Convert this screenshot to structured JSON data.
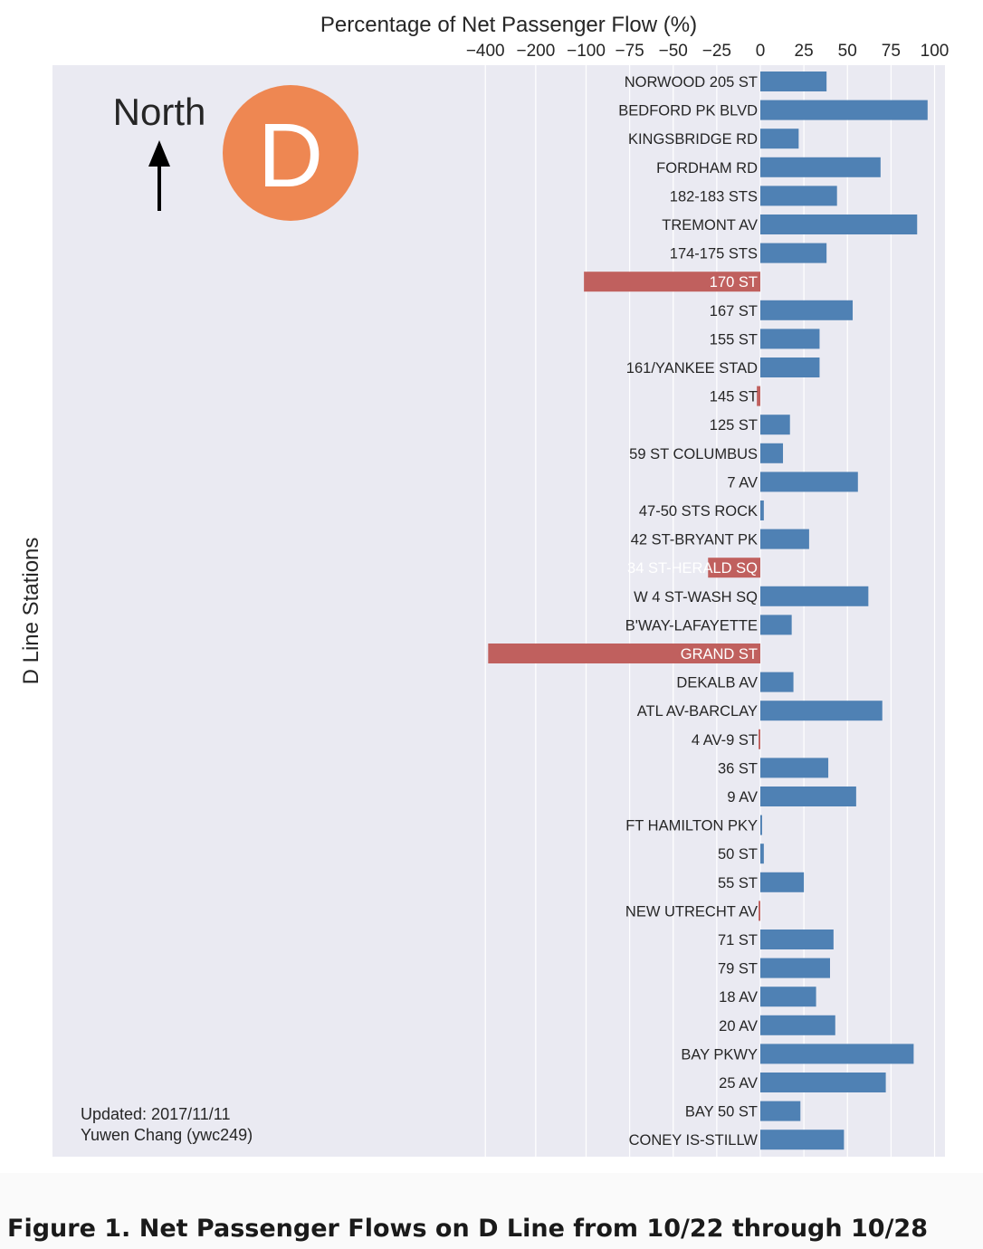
{
  "chart_data": {
    "type": "bar",
    "orientation": "horizontal",
    "xlabel": "Percentage of Net Passenger Flow (%)",
    "ylabel": "D Line Stations",
    "x_ticks": [
      -400,
      -200,
      -100,
      -75,
      -50,
      -25,
      0,
      25,
      50,
      75,
      100
    ],
    "x_tick_labels": [
      "−400",
      "−200",
      "−100",
      "−75",
      "−50",
      "−25",
      "0",
      "25",
      "50",
      "75",
      "100"
    ],
    "xscale": "symlog (linear near zero, logarithmic beyond ±100)",
    "grid": true,
    "colors": {
      "positive": "#4f81b4",
      "negative": "#c0605e",
      "background": "#eaeaf2",
      "grid": "#ffffff"
    },
    "categories": [
      "NORWOOD 205 ST",
      "BEDFORD PK BLVD",
      "KINGSBRIDGE RD",
      "FORDHAM RD",
      "182-183 STS",
      "TREMONT AV",
      "174-175 STS",
      "170 ST",
      "167 ST",
      "155 ST",
      "161/YANKEE STAD",
      "145 ST",
      "125 ST",
      "59 ST COLUMBUS",
      "7 AV",
      "47-50 STS ROCK",
      "42 ST-BRYANT PK",
      "34 ST-HERALD SQ",
      "W 4 ST-WASH SQ",
      "B'WAY-LAFAYETTE",
      "GRAND ST",
      "DEKALB AV",
      "ATL AV-BARCLAY",
      "4 AV-9 ST",
      "36 ST",
      "9 AV",
      "FT HAMILTON PKY",
      "50 ST",
      "55 ST",
      "NEW UTRECHT AV",
      "71 ST",
      "79 ST",
      "18 AV",
      "20 AV",
      "BAY PKWY",
      "25 AV",
      "BAY 50 ST",
      "CONEY IS-STILLW"
    ],
    "values": [
      38,
      96,
      22,
      69,
      44,
      90,
      38,
      -103,
      53,
      34,
      34,
      -2,
      17,
      13,
      56,
      2,
      28,
      -30,
      62,
      18,
      -385,
      19,
      70,
      -1,
      39,
      55,
      1,
      2,
      25,
      -1,
      42,
      40,
      32,
      43,
      88,
      72,
      23,
      48
    ]
  },
  "annotations": {
    "direction_label": "North",
    "line_letter": "D",
    "line_color": "#ee8752",
    "updated": "Updated: 2017/11/11",
    "author": "Yuwen Chang (ywc249)"
  },
  "caption": "Figure 1. Net Passenger Flows on D Line from 10/22 through 10/28"
}
